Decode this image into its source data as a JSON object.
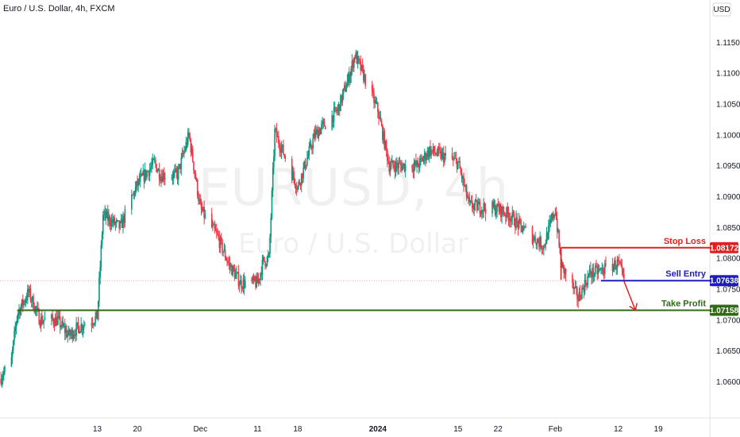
{
  "header": {
    "title": "Euro / U.S. Dollar, 4h, FXCM",
    "currency": "USD"
  },
  "watermark": {
    "symbol": "EURUSD, 4h",
    "description": "Euro / U.S. Dollar"
  },
  "colors": {
    "up": "#089981",
    "down": "#f23645",
    "stop": "#e02020",
    "entry": "#1d1dbd",
    "target": "#2f6b12",
    "arrow": "#e02020"
  },
  "levels": [
    {
      "id": "stop-loss",
      "label": "Stop Loss",
      "price": "1.08172",
      "value": 1.08172,
      "color": "#e02020",
      "start": "2024-02-02"
    },
    {
      "id": "sell-entry",
      "label": "Sell Entry",
      "price": "1.07638",
      "value": 1.07638,
      "color": "#1d1dbd",
      "start": "2024-02-09"
    },
    {
      "id": "take-profit",
      "label": "Take Profit",
      "price": "1.07158",
      "value": 1.07158,
      "color": "#2f6b12",
      "start": "2023-10-30"
    }
  ],
  "chart_data": {
    "type": "candlestick",
    "title": "Euro / U.S. Dollar, 4h, FXCM",
    "xlim": [
      "2023-10-27",
      "2024-02-28"
    ],
    "ylim": [
      1.058,
      1.118
    ],
    "y_ticks": [
      "1.06000",
      "1.06500",
      "1.07000",
      "1.07500",
      "1.08000",
      "1.08500",
      "1.09000",
      "1.09500",
      "1.10000",
      "1.10500",
      "1.11000",
      "1.11500"
    ],
    "x_ticks": [
      {
        "date": "2023-11-13",
        "label": "13"
      },
      {
        "date": "2023-11-20",
        "label": "20"
      },
      {
        "date": "2023-12-01",
        "label": "Dec"
      },
      {
        "date": "2023-12-11",
        "label": "11"
      },
      {
        "date": "2023-12-18",
        "label": "18"
      },
      {
        "date": "2024-01-01",
        "label": "2024"
      },
      {
        "date": "2024-01-15",
        "label": "15"
      },
      {
        "date": "2024-01-22",
        "label": "22"
      },
      {
        "date": "2024-02-01",
        "label": "Feb"
      },
      {
        "date": "2024-02-12",
        "label": "12"
      },
      {
        "date": "2024-02-19",
        "label": "19"
      }
    ],
    "path": [
      [
        "2023-10-27",
        1.0605
      ],
      [
        "2023-10-29",
        1.0635
      ],
      [
        "2023-10-30",
        1.071
      ],
      [
        "2023-11-01",
        1.0745
      ],
      [
        "2023-11-03",
        1.07
      ],
      [
        "2023-11-06",
        1.07
      ],
      [
        "2023-11-08",
        1.0675
      ],
      [
        "2023-11-10",
        1.069
      ],
      [
        "2023-11-13",
        1.0705
      ],
      [
        "2023-11-14",
        1.087
      ],
      [
        "2023-11-17",
        1.085
      ],
      [
        "2023-11-20",
        1.092
      ],
      [
        "2023-11-23",
        1.0955
      ],
      [
        "2023-11-24",
        1.0935
      ],
      [
        "2023-11-27",
        1.0935
      ],
      [
        "2023-11-29",
        1.1
      ],
      [
        "2023-12-01",
        1.088
      ],
      [
        "2023-12-04",
        1.0835
      ],
      [
        "2023-12-06",
        1.079
      ],
      [
        "2023-12-08",
        1.076
      ],
      [
        "2023-12-11",
        1.076
      ],
      [
        "2023-12-12",
        1.0795
      ],
      [
        "2023-12-13",
        1.08
      ],
      [
        "2023-12-14",
        1.1005
      ],
      [
        "2023-12-18",
        1.0915
      ],
      [
        "2023-12-21",
        1.1
      ],
      [
        "2023-12-25",
        1.104
      ],
      [
        "2023-12-27",
        1.1095
      ],
      [
        "2023-12-28",
        1.113
      ],
      [
        "2024-01-01",
        1.104
      ],
      [
        "2024-01-03",
        1.095
      ],
      [
        "2024-01-08",
        1.095
      ],
      [
        "2024-01-10",
        1.0975
      ],
      [
        "2024-01-15",
        1.0955
      ],
      [
        "2024-01-17",
        1.0885
      ],
      [
        "2024-01-22",
        1.088
      ],
      [
        "2024-01-24",
        1.087
      ],
      [
        "2024-01-26",
        1.085
      ],
      [
        "2024-01-30",
        1.082
      ],
      [
        "2024-02-01",
        1.088
      ],
      [
        "2024-02-02",
        1.079
      ],
      [
        "2024-02-05",
        1.0735
      ],
      [
        "2024-02-07",
        1.0775
      ],
      [
        "2024-02-09",
        1.078
      ],
      [
        "2024-02-12",
        1.0792
      ],
      [
        "2024-02-13",
        1.0763
      ]
    ],
    "last_price": 1.07638,
    "projection": {
      "from": [
        "2024-02-13",
        1.0763
      ],
      "to": [
        "2024-02-15",
        1.0716
      ]
    }
  }
}
